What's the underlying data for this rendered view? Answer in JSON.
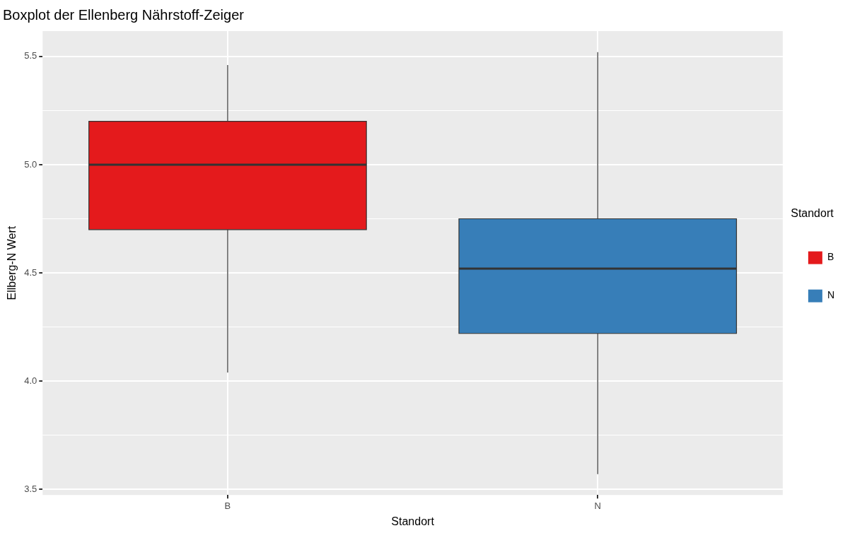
{
  "chart_data": {
    "type": "box",
    "title": "Boxplot der Ellenberg Nährstoff-Zeiger",
    "xlabel": "Standort",
    "ylabel": "Ellberg-N Wert",
    "legend_title": "Standort",
    "legend": "right",
    "grid": true,
    "categories": [
      "B",
      "N"
    ],
    "series": [
      {
        "name": "B",
        "color": "#e41a1c",
        "boxes": [
          {
            "low": 4.04,
            "q1": 4.7,
            "median": 5.0,
            "q3": 5.2,
            "high": 5.46
          },
          null
        ]
      },
      {
        "name": "N",
        "color": "#377eb8",
        "boxes": [
          null,
          {
            "low": 3.57,
            "q1": 4.22,
            "median": 4.52,
            "q3": 4.75,
            "high": 5.52
          }
        ]
      }
    ],
    "ylim": [
      3.474,
      5.617
    ],
    "yticks": [
      {
        "value": 3.5,
        "label": "3.5"
      },
      {
        "value": 3.75,
        "label": null
      },
      {
        "value": 4.0,
        "label": "4.0"
      },
      {
        "value": 4.25,
        "label": null
      },
      {
        "value": 4.5,
        "label": "4.5"
      },
      {
        "value": 4.75,
        "label": null
      },
      {
        "value": 5.0,
        "label": "5.0"
      },
      {
        "value": 5.25,
        "label": null
      },
      {
        "value": 5.5,
        "label": "5.5"
      }
    ]
  }
}
